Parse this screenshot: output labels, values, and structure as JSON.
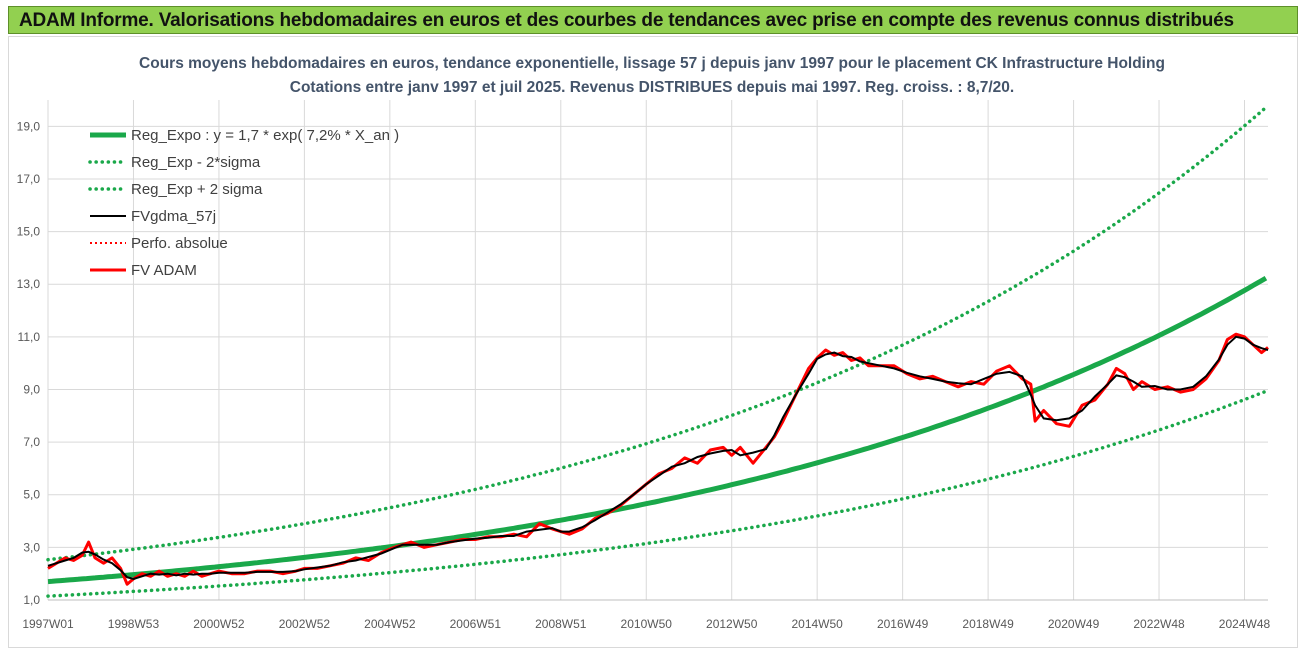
{
  "banner": {
    "text": "ADAM Informe. Valorisations hebdomadaires en euros et des courbes de tendances avec prise en compte des revenus connus distribués"
  },
  "chart_data": {
    "type": "line",
    "title": "Cours moyens hebdomadaires en euros, tendance exponentielle, lissage 57 j depuis janv 1997 pour le placement CK Infrastructure Holding",
    "subtitle": "Cotations entre janv 1997 et juil 2025. Revenus DISTRIBUES depuis mai 1997. Reg. croiss. : 8,7/20.",
    "xlabel": "",
    "ylabel": "",
    "ylim": [
      1.0,
      20.0
    ],
    "xlim": [
      1997.0,
      2025.55
    ],
    "grid": true,
    "legend_position": "top-left",
    "y_ticks": [
      "1,0",
      "3,0",
      "5,0",
      "7,0",
      "9,0",
      "11,0",
      "13,0",
      "15,0",
      "17,0",
      "19,0"
    ],
    "y_tick_values": [
      1,
      3,
      5,
      7,
      9,
      11,
      13,
      15,
      17,
      19
    ],
    "x_ticks": [
      "1997W01",
      "1998W53",
      "2000W52",
      "2002W52",
      "2004W52",
      "2006W51",
      "2008W51",
      "2010W50",
      "2012W50",
      "2014W50",
      "2016W49",
      "2018W49",
      "2020W49",
      "2022W48",
      "2024W48"
    ],
    "x_tick_values": [
      1997.0,
      1999.0,
      2001.0,
      2003.0,
      2005.0,
      2007.0,
      2009.0,
      2011.0,
      2013.0,
      2015.0,
      2017.0,
      2019.0,
      2021.0,
      2023.0,
      2025.0
    ],
    "colors": {
      "trend": "#1aa84a",
      "smooth": "#000000",
      "price": "#ff0000",
      "grid": "#d9d9d9",
      "banner": "#92d050"
    },
    "series": [
      {
        "name": "Reg_Expo : y = 1,7 * exp( 7,2% *  X_an )",
        "style": "solid-green",
        "formula": {
          "a": 1.7,
          "rate": 0.072,
          "factor": 1.0
        }
      },
      {
        "name": "Reg_Exp - 2*sigma",
        "style": "dotted-green",
        "formula": {
          "a": 1.7,
          "rate": 0.072,
          "factor": 0.675
        }
      },
      {
        "name": "Reg_Exp + 2 sigma",
        "style": "dotted-green",
        "formula": {
          "a": 1.7,
          "rate": 0.072,
          "factor": 1.49
        }
      },
      {
        "name": "FVgdma_57j",
        "style": "solid-black",
        "x": [],
        "y": []
      },
      {
        "name": "Perfo. absolue",
        "style": "dotted-red",
        "x": [],
        "y": []
      },
      {
        "name": "FV ADAM",
        "style": "solid-red",
        "x": [
          1997.0,
          1997.2,
          1997.4,
          1997.6,
          1997.8,
          1997.95,
          1998.1,
          1998.3,
          1998.5,
          1998.7,
          1998.85,
          1999.0,
          1999.2,
          1999.4,
          1999.6,
          1999.8,
          2000.0,
          2000.2,
          2000.4,
          2000.6,
          2000.8,
          2001.0,
          2001.3,
          2001.6,
          2001.9,
          2002.2,
          2002.5,
          2002.8,
          2003.0,
          2003.3,
          2003.6,
          2003.9,
          2004.2,
          2004.5,
          2004.8,
          2005.1,
          2005.3,
          2005.5,
          2005.8,
          2006.1,
          2006.4,
          2006.7,
          2007.0,
          2007.3,
          2007.6,
          2007.9,
          2008.2,
          2008.5,
          2008.8,
          2009.0,
          2009.2,
          2009.5,
          2009.8,
          2010.1,
          2010.4,
          2010.7,
          2011.0,
          2011.3,
          2011.6,
          2011.9,
          2012.2,
          2012.5,
          2012.8,
          2013.0,
          2013.2,
          2013.5,
          2013.8,
          2014.0,
          2014.2,
          2014.5,
          2014.8,
          2015.0,
          2015.2,
          2015.4,
          2015.6,
          2015.8,
          2016.0,
          2016.2,
          2016.5,
          2016.8,
          2017.1,
          2017.4,
          2017.7,
          2018.0,
          2018.3,
          2018.6,
          2018.9,
          2019.2,
          2019.5,
          2019.8,
          2020.0,
          2020.1,
          2020.3,
          2020.6,
          2020.9,
          2021.2,
          2021.5,
          2021.8,
          2022.0,
          2022.2,
          2022.4,
          2022.6,
          2022.9,
          2023.2,
          2023.5,
          2023.8,
          2024.1,
          2024.4,
          2024.6,
          2024.8,
          2025.0,
          2025.2,
          2025.4,
          2025.55
        ],
        "y": [
          2.2,
          2.4,
          2.6,
          2.5,
          2.7,
          3.2,
          2.6,
          2.4,
          2.6,
          2.2,
          1.6,
          1.8,
          2.0,
          1.9,
          2.1,
          1.9,
          2.0,
          1.9,
          2.1,
          1.9,
          2.0,
          2.1,
          2.0,
          2.0,
          2.1,
          2.1,
          2.0,
          2.1,
          2.2,
          2.2,
          2.3,
          2.4,
          2.6,
          2.5,
          2.8,
          3.0,
          3.1,
          3.2,
          3.0,
          3.1,
          3.2,
          3.3,
          3.3,
          3.4,
          3.4,
          3.5,
          3.4,
          3.9,
          3.7,
          3.6,
          3.5,
          3.7,
          4.1,
          4.3,
          4.6,
          5.0,
          5.4,
          5.8,
          6.0,
          6.4,
          6.2,
          6.7,
          6.8,
          6.5,
          6.8,
          6.2,
          6.8,
          7.2,
          7.8,
          8.8,
          9.8,
          10.2,
          10.5,
          10.3,
          10.4,
          10.1,
          10.2,
          9.9,
          9.9,
          9.9,
          9.6,
          9.4,
          9.5,
          9.3,
          9.1,
          9.3,
          9.2,
          9.7,
          9.9,
          9.4,
          9.2,
          7.8,
          8.2,
          7.7,
          7.6,
          8.4,
          8.6,
          9.2,
          9.8,
          9.6,
          9.0,
          9.3,
          9.0,
          9.1,
          8.9,
          9.0,
          9.4,
          10.1,
          10.9,
          11.1,
          11.0,
          10.7,
          10.4,
          10.6
        ]
      }
    ]
  }
}
